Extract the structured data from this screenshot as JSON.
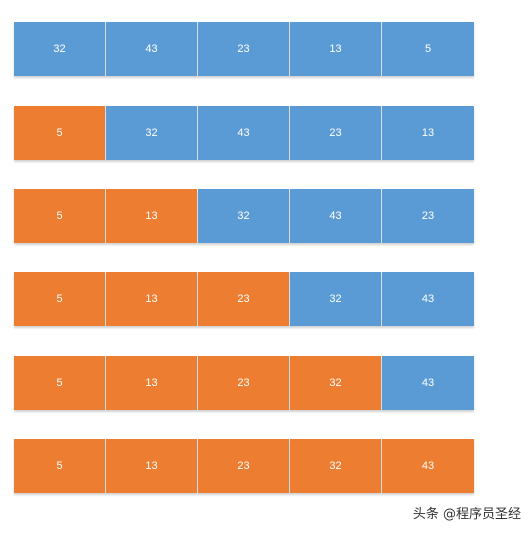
{
  "colors": {
    "sorted": "#ed7d31",
    "unsorted": "#5b9bd5"
  },
  "rows": [
    {
      "values": [
        "32",
        "43",
        "23",
        "13",
        "5"
      ],
      "sorted_count": 0
    },
    {
      "values": [
        "5",
        "32",
        "43",
        "23",
        "13"
      ],
      "sorted_count": 1
    },
    {
      "values": [
        "5",
        "13",
        "32",
        "43",
        "23"
      ],
      "sorted_count": 2
    },
    {
      "values": [
        "5",
        "13",
        "23",
        "32",
        "43"
      ],
      "sorted_count": 3
    },
    {
      "values": [
        "5",
        "13",
        "23",
        "32",
        "43"
      ],
      "sorted_count": 4
    },
    {
      "values": [
        "5",
        "13",
        "23",
        "32",
        "43"
      ],
      "sorted_count": 5
    }
  ],
  "watermark": "头条 @程序员圣经"
}
